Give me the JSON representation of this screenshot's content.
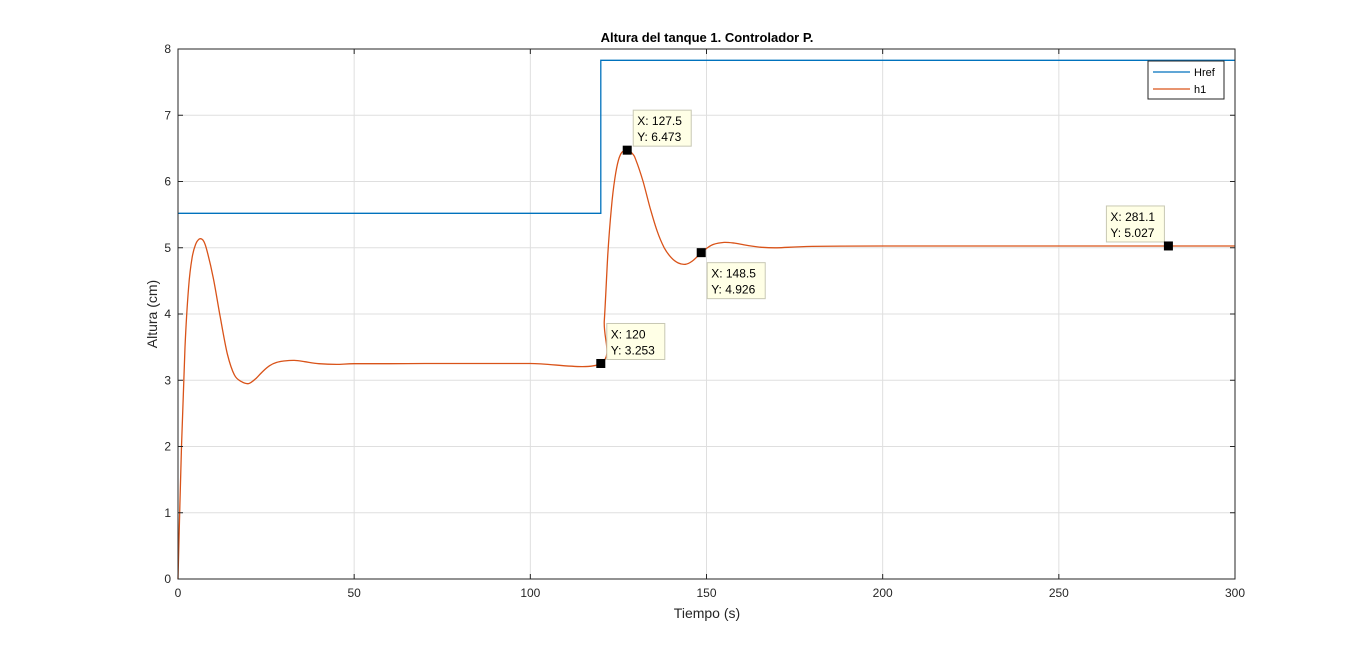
{
  "chart_data": {
    "type": "line",
    "title": "Altura del tanque 1. Controlador P.",
    "xlabel": "Tiempo (s)",
    "ylabel": "Altura (cm)",
    "xlim": [
      0,
      300
    ],
    "ylim": [
      0,
      8
    ],
    "xticks": [
      0,
      50,
      100,
      150,
      200,
      250,
      300
    ],
    "yticks": [
      0,
      1,
      2,
      3,
      4,
      5,
      6,
      7,
      8
    ],
    "grid": true,
    "legend_position": "top-right",
    "colors": {
      "Href": "#0072BD",
      "h1": "#D95319"
    },
    "series": [
      {
        "name": "Href",
        "x": [
          0,
          120,
          120,
          300
        ],
        "y": [
          5.52,
          5.52,
          7.83,
          7.83
        ]
      },
      {
        "name": "h1",
        "x": [
          0,
          1,
          2,
          3,
          4,
          5,
          6,
          7,
          8,
          10,
          12,
          14,
          16,
          18,
          20,
          22,
          24,
          26,
          28,
          30,
          33,
          36,
          40,
          45,
          50,
          60,
          70,
          80,
          100,
          120,
          121,
          122,
          123,
          124,
          125,
          126,
          127.5,
          129,
          130,
          132,
          134,
          136,
          138,
          140,
          142,
          144,
          146,
          148.5,
          150,
          152,
          155,
          158,
          160,
          165,
          170,
          180,
          200,
          250,
          281.1,
          300
        ],
        "y": [
          0,
          2.0,
          3.5,
          4.4,
          4.85,
          5.05,
          5.13,
          5.12,
          5.0,
          4.55,
          3.95,
          3.4,
          3.08,
          2.98,
          2.95,
          3.02,
          3.13,
          3.22,
          3.27,
          3.29,
          3.3,
          3.28,
          3.25,
          3.24,
          3.25,
          3.25,
          3.253,
          3.253,
          3.253,
          3.253,
          3.9,
          4.9,
          5.6,
          6.05,
          6.32,
          6.44,
          6.473,
          6.42,
          6.32,
          6.0,
          5.6,
          5.25,
          5.0,
          4.85,
          4.77,
          4.75,
          4.8,
          4.926,
          4.99,
          5.05,
          5.08,
          5.07,
          5.05,
          5.01,
          5.0,
          5.02,
          5.027,
          5.027,
          5.027,
          5.027
        ]
      }
    ],
    "datatips": [
      {
        "x": 120,
        "y": 3.253,
        "label_x": "X: 120",
        "label_y": "Y: 3.253",
        "placement": "above-right"
      },
      {
        "x": 127.5,
        "y": 6.473,
        "label_x": "X: 127.5",
        "label_y": "Y: 6.473",
        "placement": "above-right"
      },
      {
        "x": 148.5,
        "y": 4.926,
        "label_x": "X: 148.5",
        "label_y": "Y: 4.926",
        "placement": "below-right"
      },
      {
        "x": 281.1,
        "y": 5.027,
        "label_x": "X: 281.1",
        "label_y": "Y: 5.027",
        "placement": "above-left"
      }
    ]
  }
}
